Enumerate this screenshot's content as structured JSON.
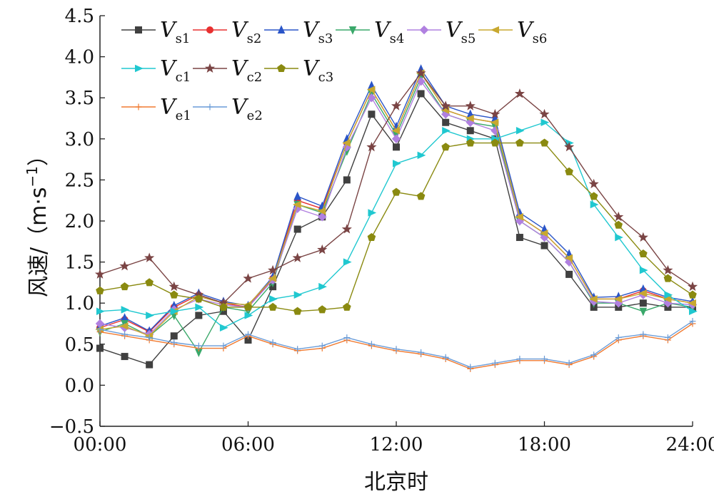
{
  "chart_data": {
    "type": "line",
    "title": "",
    "xlabel": "北京时",
    "ylabel": "风速/（m·s⁻¹）",
    "ylabel_parts": {
      "main": "风速/（m·s",
      "sup": "−1",
      "close": "）"
    },
    "xlim": [
      0,
      24
    ],
    "ylim": [
      -0.5,
      4.5
    ],
    "x_ticks": [
      0,
      6,
      12,
      18,
      24
    ],
    "x_tick_labels": [
      "00:00",
      "06:00",
      "12:00",
      "18:00",
      "24:00"
    ],
    "y_ticks": [
      -0.5,
      0.0,
      0.5,
      1.0,
      1.5,
      2.0,
      2.5,
      3.0,
      3.5,
      4.0,
      4.5
    ],
    "y_tick_labels": [
      "−0.5",
      "0.0",
      "0.5",
      "1.0",
      "1.5",
      "2.0",
      "2.5",
      "3.0",
      "3.5",
      "4.0",
      "4.5"
    ],
    "grid": false,
    "legend_position": "top-left",
    "x": [
      0.0,
      1.0,
      2.0,
      3.0,
      4.0,
      5.0,
      6.0,
      7.0,
      8.0,
      9.0,
      10.0,
      11.0,
      12.0,
      13.0,
      14.0,
      15.0,
      16.0,
      17.0,
      18.0,
      19.0,
      20.0,
      21.0,
      22.0,
      23.0,
      24.0
    ],
    "series": [
      {
        "name": "Vs1",
        "label": "V",
        "sub": "s1",
        "color": "#404040",
        "marker": "square",
        "values": [
          0.45,
          0.35,
          0.25,
          0.6,
          0.85,
          0.9,
          0.55,
          1.2,
          1.9,
          2.05,
          2.5,
          3.3,
          2.9,
          3.55,
          3.2,
          3.1,
          3.0,
          1.8,
          1.7,
          1.35,
          0.95,
          0.95,
          1.0,
          0.95,
          0.95
        ]
      },
      {
        "name": "Vs2",
        "label": "V",
        "sub": "s2",
        "color": "#e83030",
        "marker": "circle",
        "values": [
          0.7,
          0.8,
          0.65,
          0.95,
          1.1,
          1.0,
          0.95,
          1.3,
          2.25,
          2.15,
          2.95,
          3.6,
          3.1,
          3.8,
          3.35,
          3.25,
          3.2,
          2.05,
          1.85,
          1.55,
          1.05,
          1.05,
          1.15,
          1.05,
          1.0
        ]
      },
      {
        "name": "Vs3",
        "label": "V",
        "sub": "s3",
        "color": "#2a55c8",
        "marker": "triangle-up",
        "values": [
          0.72,
          0.82,
          0.66,
          0.97,
          1.12,
          1.02,
          0.97,
          1.32,
          2.3,
          2.18,
          3.0,
          3.65,
          3.15,
          3.85,
          3.4,
          3.3,
          3.25,
          2.1,
          1.9,
          1.6,
          1.07,
          1.08,
          1.17,
          1.07,
          1.02
        ]
      },
      {
        "name": "Vs4",
        "label": "V",
        "sub": "s4",
        "color": "#3aa86a",
        "marker": "triangle-down",
        "values": [
          0.65,
          0.75,
          0.6,
          0.85,
          0.4,
          0.95,
          0.9,
          1.25,
          2.2,
          2.1,
          2.85,
          3.55,
          3.05,
          3.75,
          3.3,
          3.2,
          3.15,
          2.0,
          1.8,
          1.5,
          1.0,
          1.0,
          0.9,
          1.0,
          0.95
        ]
      },
      {
        "name": "Vs5",
        "label": "V",
        "sub": "s5",
        "color": "#b080e0",
        "marker": "diamond",
        "values": [
          0.75,
          0.7,
          0.62,
          0.92,
          1.05,
          0.98,
          0.95,
          1.28,
          2.15,
          2.05,
          2.9,
          3.5,
          3.0,
          3.7,
          3.3,
          3.2,
          3.1,
          2.0,
          1.8,
          1.5,
          1.02,
          1.0,
          1.1,
          1.0,
          0.98
        ]
      },
      {
        "name": "Vs6",
        "label": "V",
        "sub": "s6",
        "color": "#c8a830",
        "marker": "triangle-left",
        "values": [
          0.68,
          0.72,
          0.6,
          0.9,
          1.08,
          1.0,
          0.98,
          1.3,
          2.2,
          2.12,
          2.95,
          3.6,
          3.1,
          3.8,
          3.35,
          3.25,
          3.2,
          2.05,
          1.85,
          1.55,
          1.05,
          1.05,
          1.12,
          1.05,
          1.0
        ]
      },
      {
        "name": "Vc1",
        "label": "V",
        "sub": "c1",
        "color": "#20c8d0",
        "marker": "triangle-right",
        "values": [
          0.9,
          0.92,
          0.85,
          0.9,
          0.95,
          0.7,
          0.85,
          1.05,
          1.1,
          1.2,
          1.5,
          2.1,
          2.7,
          2.8,
          3.1,
          3.0,
          3.0,
          3.1,
          3.2,
          2.95,
          2.2,
          1.8,
          1.4,
          1.1,
          0.9
        ]
      },
      {
        "name": "Vc2",
        "label": "V",
        "sub": "c2",
        "color": "#7a4444",
        "marker": "star",
        "values": [
          1.35,
          1.45,
          1.55,
          1.2,
          1.1,
          1.0,
          1.3,
          1.4,
          1.55,
          1.65,
          1.9,
          2.9,
          3.4,
          3.8,
          3.4,
          3.4,
          3.3,
          3.55,
          3.3,
          2.9,
          2.45,
          2.05,
          1.8,
          1.4,
          1.2
        ]
      },
      {
        "name": "Vc3",
        "label": "V",
        "sub": "c3",
        "color": "#8a8a10",
        "marker": "pentagon",
        "values": [
          1.15,
          1.2,
          1.25,
          1.1,
          1.05,
          0.95,
          0.95,
          0.95,
          0.9,
          0.92,
          0.95,
          1.8,
          2.35,
          2.3,
          2.9,
          2.95,
          2.95,
          2.95,
          2.95,
          2.6,
          2.3,
          1.95,
          1.6,
          1.3,
          1.1
        ]
      },
      {
        "name": "Ve1",
        "label": "V",
        "sub": "e1",
        "color": "#f07a30",
        "marker": "plus",
        "values": [
          0.65,
          0.6,
          0.55,
          0.5,
          0.45,
          0.45,
          0.6,
          0.5,
          0.42,
          0.45,
          0.55,
          0.48,
          0.42,
          0.38,
          0.32,
          0.2,
          0.25,
          0.3,
          0.3,
          0.25,
          0.35,
          0.55,
          0.6,
          0.55,
          0.75
        ]
      },
      {
        "name": "Ve2",
        "label": "V",
        "sub": "e2",
        "color": "#6a9cd8",
        "marker": "plus",
        "values": [
          0.68,
          0.62,
          0.58,
          0.52,
          0.48,
          0.48,
          0.62,
          0.52,
          0.44,
          0.48,
          0.58,
          0.5,
          0.44,
          0.4,
          0.34,
          0.22,
          0.27,
          0.32,
          0.32,
          0.27,
          0.37,
          0.58,
          0.62,
          0.58,
          0.78
        ]
      }
    ]
  }
}
